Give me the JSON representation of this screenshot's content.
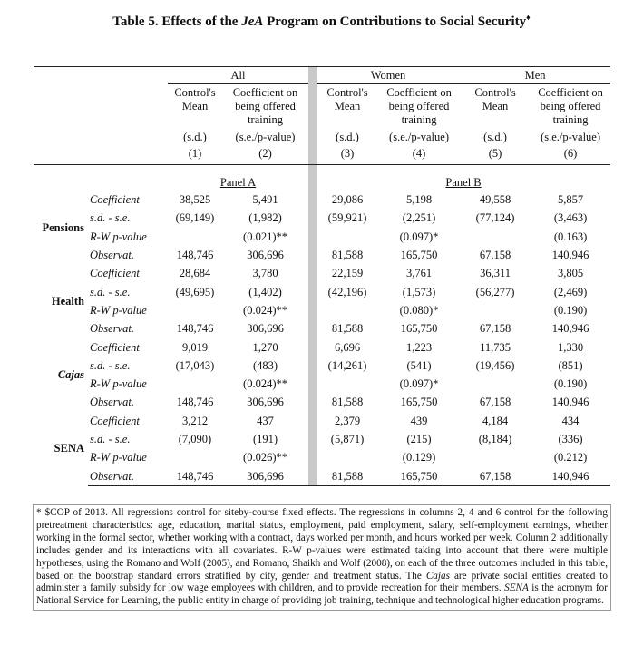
{
  "title": [
    "Table 5. Effects of the ",
    "JeA",
    " Program on Contributions to Social Security",
    "♦"
  ],
  "table": {
    "groups": [
      "All",
      "Women",
      "Men"
    ],
    "subheaders": [
      "Control's Mean",
      "Coefficient on being offered training",
      "Control's Mean",
      "Coefficient on being offered training",
      "Control's Mean",
      "Coefficient on being offered training"
    ],
    "stat_labels": [
      "(s.d.)",
      "(s.e./p-value)",
      "(s.d.)",
      "(s.e./p-value)",
      "(s.d.)",
      "(s.e./p-value)"
    ],
    "col_numbers": [
      "(1)",
      "(2)",
      "(3)",
      "(4)",
      "(5)",
      "(6)"
    ],
    "panels": [
      "Panel A",
      "Panel B"
    ],
    "row_labels": [
      "Coefficient",
      "s.d. - s.e.",
      "R-W p-value",
      "Observat."
    ],
    "sections": [
      {
        "name": "Pensions",
        "rows": [
          [
            "38,525",
            "5,491",
            "29,086",
            "5,198",
            "49,558",
            "5,857"
          ],
          [
            "(69,149)",
            "(1,982)",
            "(59,921)",
            "(2,251)",
            "(77,124)",
            "(3,463)"
          ],
          [
            null,
            "(0.021)**",
            null,
            "(0.097)*",
            null,
            "(0.163)"
          ],
          [
            "148,746",
            "306,696",
            "81,588",
            "165,750",
            "67,158",
            "140,946"
          ]
        ]
      },
      {
        "name": "Health",
        "rows": [
          [
            "28,684",
            "3,780",
            "22,159",
            "3,761",
            "36,311",
            "3,805"
          ],
          [
            "(49,695)",
            "(1,402)",
            "(42,196)",
            "(1,573)",
            "(56,277)",
            "(2,469)"
          ],
          [
            null,
            "(0.024)**",
            null,
            "(0.080)*",
            null,
            "(0.190)"
          ],
          [
            "148,746",
            "306,696",
            "81,588",
            "165,750",
            "67,158",
            "140,946"
          ]
        ]
      },
      {
        "name": "Cajas",
        "rows": [
          [
            "9,019",
            "1,270",
            "6,696",
            "1,223",
            "11,735",
            "1,330"
          ],
          [
            "(17,043)",
            "(483)",
            "(14,261)",
            "(541)",
            "(19,456)",
            "(851)"
          ],
          [
            null,
            "(0.024)**",
            null,
            "(0.097)*",
            null,
            "(0.190)"
          ],
          [
            "148,746",
            "306,696",
            "81,588",
            "165,750",
            "67,158",
            "140,946"
          ]
        ]
      },
      {
        "name": "SENA",
        "rows": [
          [
            "3,212",
            "437",
            "2,379",
            "439",
            "4,184",
            "434"
          ],
          [
            "(7,090)",
            "(191)",
            "(5,871)",
            "(215)",
            "(8,184)",
            "(336)"
          ],
          [
            null,
            "(0.026)**",
            null,
            "(0.129)",
            null,
            "(0.212)"
          ],
          [
            "148,746",
            "306,696",
            "81,588",
            "165,750",
            "67,158",
            "140,946"
          ]
        ]
      }
    ]
  },
  "footnote": [
    "* $COP of 2013. All regressions control for siteby-course fixed effects. The regressions in columns 2, 4 and 6 control for the following pretreatment characteristics: age, education, marital status, employment, paid employment, salary, self-employment earnings, whether working in the formal sector, whether working with a contract, days worked per month, and hours worked per week. Column 2 additionally includes gender and its interactions with all covariates. R-W p-values were estimated taking into account that there were multiple hypotheses, using the Romano and Wolf (2005), and Romano, Shaikh and Wolf (2008), on each of the three outcomes included in this table, based on the bootstrap standard errors stratified by city, gender and treatment status. The ",
    "Cajas",
    " are private social entities created to administer a family subsidy for low wage employees with children, and to provide recreation for their members. ",
    "SENA",
    " is the acronym for National Service for Learning, the public entity in charge of providing job training, technique and technological higher education programs."
  ]
}
